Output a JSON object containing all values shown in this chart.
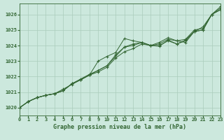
{
  "title": "",
  "xlabel": "Graphe pression niveau de la mer (hPa)",
  "ylabel": "",
  "background_color": "#cce8dd",
  "plot_bg_color": "#cce8dd",
  "grid_color": "#aaccbb",
  "line_color": "#336633",
  "text_color": "#336633",
  "xlim": [
    0,
    23
  ],
  "ylim": [
    1019.5,
    1026.7
  ],
  "yticks": [
    1020,
    1021,
    1022,
    1023,
    1024,
    1025,
    1026
  ],
  "xtick_labels": [
    "0",
    "1",
    "2",
    "3",
    "4",
    "5",
    "6",
    "7",
    "8",
    "9",
    "10",
    "11",
    "12",
    "13",
    "14",
    "15",
    "16",
    "17",
    "18",
    "19",
    "20",
    "21",
    "22",
    "23"
  ],
  "series": [
    [
      1020.0,
      1020.4,
      1020.65,
      1020.8,
      1020.9,
      1021.1,
      1021.55,
      1021.8,
      1022.1,
      1023.0,
      1023.3,
      1023.55,
      1024.45,
      1024.3,
      1024.2,
      1024.0,
      1023.95,
      1024.35,
      1024.1,
      1024.35,
      1024.9,
      1025.0,
      1026.0,
      1026.3
    ],
    [
      1020.0,
      1020.4,
      1020.65,
      1020.8,
      1020.9,
      1021.1,
      1021.55,
      1021.85,
      1022.15,
      1022.4,
      1022.7,
      1023.4,
      1023.9,
      1024.1,
      1024.2,
      1024.0,
      1024.1,
      1024.4,
      1024.3,
      1024.4,
      1025.0,
      1025.1,
      1026.0,
      1026.4
    ],
    [
      1020.0,
      1020.4,
      1020.65,
      1020.8,
      1020.9,
      1021.2,
      1021.5,
      1021.8,
      1022.1,
      1022.3,
      1022.6,
      1023.2,
      1023.6,
      1023.8,
      1024.1,
      1024.0,
      1024.2,
      1024.5,
      1024.3,
      1024.2,
      1024.9,
      1025.2,
      1026.0,
      1026.5
    ],
    [
      1020.0,
      1020.4,
      1020.65,
      1020.8,
      1020.9,
      1021.1,
      1021.55,
      1021.8,
      1022.1,
      1022.4,
      1022.7,
      1023.3,
      1023.9,
      1024.0,
      1024.2,
      1024.0,
      1024.0,
      1024.3,
      1024.1,
      1024.3,
      1024.9,
      1025.0,
      1026.0,
      1026.3
    ]
  ]
}
